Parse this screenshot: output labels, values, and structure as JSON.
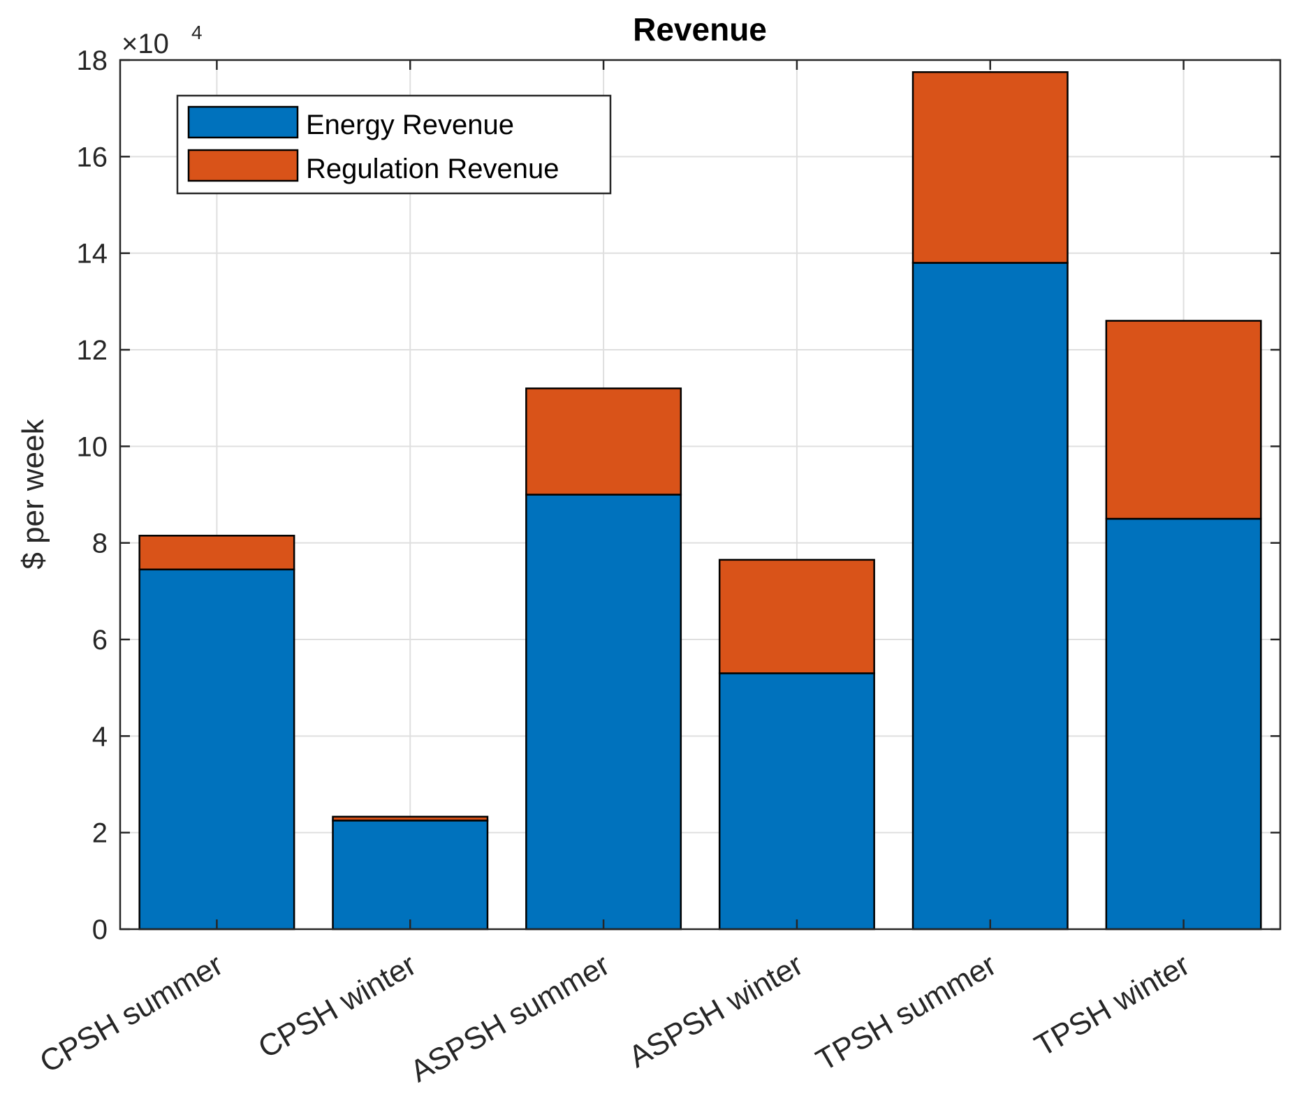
{
  "chart_data": {
    "type": "bar",
    "stacked": true,
    "title": "Revenue",
    "xlabel": "",
    "ylabel": "$ per week",
    "y_exponent_label": "×10",
    "y_exponent_power": "4",
    "y_scale": 10000,
    "ylim": [
      0,
      180000
    ],
    "yticks": [
      0,
      2,
      4,
      6,
      8,
      10,
      12,
      14,
      16,
      18
    ],
    "grid": true,
    "legend_position": "top-left",
    "categories": [
      "CPSH summer",
      "CPSH winter",
      "ASPSH summer",
      "ASPSH winter",
      "TPSH summer",
      "TPSH winter"
    ],
    "series": [
      {
        "name": "Energy Revenue",
        "color": "#0072bd",
        "values": [
          74500,
          22500,
          90000,
          53000,
          138000,
          85000
        ]
      },
      {
        "name": "Regulation Revenue",
        "color": "#d95319",
        "values": [
          7000,
          800,
          22000,
          23500,
          39500,
          41000
        ]
      }
    ]
  }
}
